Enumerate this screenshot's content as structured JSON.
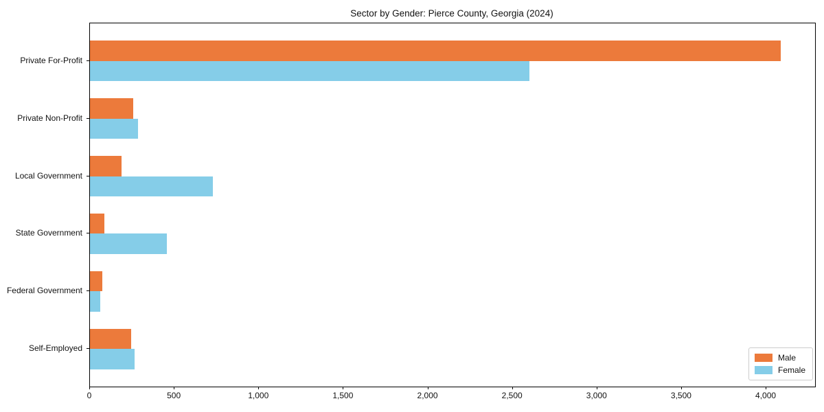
{
  "chart_data": {
    "type": "bar",
    "orientation": "horizontal",
    "title": "Sector by Gender: Pierce County, Georgia (2024)",
    "categories": [
      "Private For-Profit",
      "Private Non-Profit",
      "Local Government",
      "State Government",
      "Federal Government",
      "Self-Employed"
    ],
    "series": [
      {
        "name": "Male",
        "color": "#ec7a3b",
        "values": [
          4085,
          255,
          187,
          85,
          75,
          245
        ]
      },
      {
        "name": "Female",
        "color": "#85cde8",
        "values": [
          2600,
          285,
          727,
          455,
          60,
          265
        ]
      }
    ],
    "xlabel": "",
    "ylabel": "",
    "xlim": [
      0,
      4288
    ],
    "xticks": [
      0,
      500,
      1000,
      1500,
      2000,
      2500,
      3000,
      3500,
      4000
    ],
    "xtick_labels": [
      "0",
      "500",
      "1,000",
      "1,500",
      "2,000",
      "2,500",
      "3,000",
      "3,500",
      "4,000"
    ],
    "grid": false,
    "legend_position": "lower right",
    "plot_border_color": "#000000",
    "background_color": "#ffffff"
  }
}
